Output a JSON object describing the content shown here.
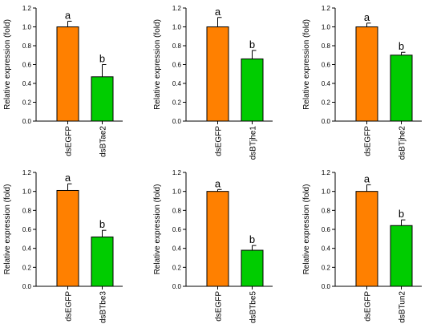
{
  "chart_data": [
    {
      "type": "bar",
      "title": "",
      "xlabel": "",
      "ylabel": "Relative expression (fold)",
      "ylim": [
        0,
        1.2
      ],
      "yticks": [
        0.0,
        0.2,
        0.4,
        0.6,
        0.8,
        1.0,
        1.2
      ],
      "categories": [
        "dsEGFP",
        "dsBTae2"
      ],
      "values": [
        1.0,
        0.47
      ],
      "errors": [
        0.06,
        0.13
      ],
      "significance": [
        "a",
        "b"
      ],
      "colors": [
        "#ff8000",
        "#00cc00"
      ]
    },
    {
      "type": "bar",
      "title": "",
      "xlabel": "",
      "ylabel": "Relative expression (fold)",
      "ylim": [
        0,
        1.2
      ],
      "yticks": [
        0.0,
        0.2,
        0.4,
        0.6,
        0.8,
        1.0,
        1.2
      ],
      "categories": [
        "dsEGFP",
        "dsBTjhe1"
      ],
      "values": [
        1.0,
        0.66
      ],
      "errors": [
        0.1,
        0.09
      ],
      "significance": [
        "a",
        "b"
      ],
      "colors": [
        "#ff8000",
        "#00cc00"
      ]
    },
    {
      "type": "bar",
      "title": "",
      "xlabel": "",
      "ylabel": "Relative expression (fold)",
      "ylim": [
        0,
        1.2
      ],
      "yticks": [
        0.0,
        0.2,
        0.4,
        0.6,
        0.8,
        1.0,
        1.2
      ],
      "categories": [
        "dsEGFP",
        "dsBTjhe2"
      ],
      "values": [
        1.0,
        0.7
      ],
      "errors": [
        0.04,
        0.03
      ],
      "significance": [
        "a",
        "b"
      ],
      "colors": [
        "#ff8000",
        "#00cc00"
      ]
    },
    {
      "type": "bar",
      "title": "",
      "xlabel": "",
      "ylabel": "Relative expression (fold)",
      "ylim": [
        0,
        1.2
      ],
      "yticks": [
        0.0,
        0.2,
        0.4,
        0.6,
        0.8,
        1.0,
        1.2
      ],
      "categories": [
        "dsEGFP",
        "dsBTbe3"
      ],
      "values": [
        1.01,
        0.52
      ],
      "errors": [
        0.07,
        0.07
      ],
      "significance": [
        "a",
        "b"
      ],
      "colors": [
        "#ff8000",
        "#00cc00"
      ]
    },
    {
      "type": "bar",
      "title": "",
      "xlabel": "",
      "ylabel": "Relative expression (fold)",
      "ylim": [
        0,
        1.2
      ],
      "yticks": [
        0.0,
        0.2,
        0.4,
        0.6,
        0.8,
        1.0,
        1.2
      ],
      "categories": [
        "dsEGFP",
        "dsBTbe5"
      ],
      "values": [
        1.0,
        0.38
      ],
      "errors": [
        0.02,
        0.05
      ],
      "significance": [
        "a",
        "b"
      ],
      "colors": [
        "#ff8000",
        "#00cc00"
      ]
    },
    {
      "type": "bar",
      "title": "",
      "xlabel": "",
      "ylabel": "Relative expression (fold)",
      "ylim": [
        0,
        1.2
      ],
      "yticks": [
        0.0,
        0.2,
        0.4,
        0.6,
        0.8,
        1.0,
        1.2
      ],
      "categories": [
        "dsEGFP",
        "dsBTun2"
      ],
      "values": [
        1.0,
        0.64
      ],
      "errors": [
        0.07,
        0.06
      ],
      "significance": [
        "a",
        "b"
      ],
      "colors": [
        "#ff8000",
        "#00cc00"
      ]
    }
  ]
}
